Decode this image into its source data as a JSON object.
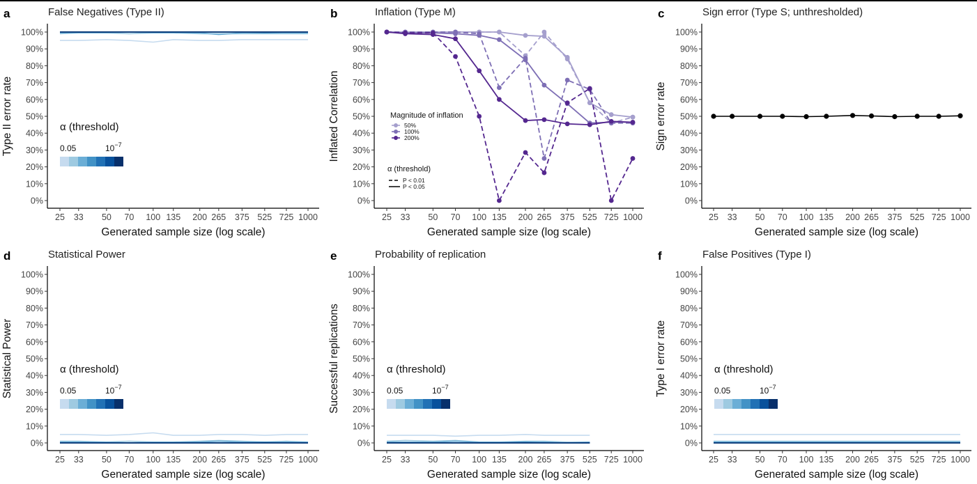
{
  "figure": {
    "x_axis_label": "Generated sample size (log scale)",
    "x_ticks": [
      "25",
      "33",
      "50",
      "70",
      "100",
      "135",
      "200",
      "265",
      "375",
      "525",
      "725",
      "1000"
    ],
    "y_ticks": [
      "0%",
      "10%",
      "20%",
      "30%",
      "40%",
      "50%",
      "60%",
      "70%",
      "80%",
      "90%",
      "100%"
    ],
    "blue_scale": [
      "#c6dbef",
      "#9ecae1",
      "#6baed6",
      "#4292c6",
      "#2171b5",
      "#08519c",
      "#08306b"
    ]
  },
  "chart_data": [
    {
      "panel_letter": "a",
      "type": "line",
      "title": "False Negatives (Type II)",
      "xlabel": "Generated sample size (log scale)",
      "ylabel": "Type II error rate",
      "x": [
        25,
        33,
        50,
        70,
        100,
        135,
        200,
        265,
        375,
        525,
        725,
        1000
      ],
      "ylim": [
        0,
        100
      ],
      "legend": {
        "title": "α (threshold)",
        "low_label": "0.05",
        "high_label": "10",
        "high_exp": "−7",
        "position": "middle-left"
      },
      "series": [
        {
          "color": "#c6dbef",
          "values": [
            95,
            95,
            95.5,
            95,
            94,
            95.5,
            95,
            95,
            95.5,
            95.5,
            95.5,
            95.5
          ]
        },
        {
          "color": "#9ecae1",
          "values": [
            99,
            99.5,
            99.5,
            99,
            99.5,
            99.5,
            99,
            99,
            99,
            99,
            99,
            99
          ]
        },
        {
          "color": "#6baed6",
          "values": [
            99.5,
            99.5,
            99.5,
            100,
            99.5,
            99.5,
            99.5,
            98.5,
            99.5,
            99.5,
            99.5,
            99.5
          ]
        },
        {
          "color": "#4292c6",
          "values": [
            100,
            100,
            100,
            100,
            100,
            100,
            100,
            100,
            100,
            99.5,
            100,
            100
          ]
        },
        {
          "color": "#2171b5",
          "values": [
            100,
            100,
            100,
            100,
            100,
            100,
            100,
            100,
            100,
            100,
            100,
            100
          ]
        },
        {
          "color": "#08519c",
          "values": [
            100,
            100,
            100,
            100,
            100,
            100,
            100,
            100,
            100,
            100,
            100,
            100
          ]
        },
        {
          "color": "#08306b",
          "values": [
            100,
            100,
            100,
            100,
            100,
            100,
            100,
            100,
            100,
            100,
            100,
            100
          ]
        }
      ]
    },
    {
      "panel_letter": "b",
      "type": "line",
      "title": "Inflation (Type M)",
      "xlabel": "Generated sample size (log scale)",
      "ylabel": "Inflated Correlation",
      "x": [
        25,
        33,
        50,
        70,
        100,
        135,
        200,
        265,
        375,
        525,
        725,
        1000
      ],
      "ylim": [
        0,
        100
      ],
      "legend": {
        "magnitude_title": "Magnitude of inflation",
        "magnitude_labels": [
          "50%",
          "100%",
          "200%"
        ],
        "alpha_title": "α (threshold)",
        "alpha_labels": [
          "P < 0.01",
          "P < 0.05"
        ],
        "position": "middle-left"
      },
      "series": [
        {
          "name": "50%",
          "linetype": "solid",
          "color": "#a59fcd",
          "values": [
            100,
            100,
            100,
            100,
            100,
            100,
            98,
            97.5,
            85,
            58,
            51,
            49.5
          ]
        },
        {
          "name": "50%",
          "linetype": "dashed",
          "color": "#a59fcd",
          "values": [
            100,
            100,
            100,
            100,
            100,
            100,
            86,
            100,
            84,
            58,
            46,
            49.5
          ]
        },
        {
          "name": "100%",
          "linetype": "solid",
          "color": "#7e6fb5",
          "values": [
            100,
            99.5,
            99.5,
            99,
            98,
            95.5,
            83.5,
            68.5,
            57.5,
            46,
            46.5,
            46.5
          ]
        },
        {
          "name": "100%",
          "linetype": "dashed",
          "color": "#7e6fb5",
          "values": [
            100,
            100,
            100,
            100,
            99,
            67,
            84.5,
            25,
            71.5,
            66,
            46,
            46
          ]
        },
        {
          "name": "200%",
          "linetype": "solid",
          "color": "#54278f",
          "values": [
            100,
            99,
            98.5,
            96,
            77,
            60,
            47.5,
            48,
            45.5,
            45,
            47,
            46.5
          ]
        },
        {
          "name": "200%",
          "linetype": "dashed",
          "color": "#54278f",
          "values": [
            100,
            99.5,
            99.5,
            85.5,
            50,
            0,
            28.5,
            16.5,
            58,
            66.5,
            0,
            25
          ]
        }
      ]
    },
    {
      "panel_letter": "c",
      "type": "line",
      "title": "Sign error (Type S; unthresholded)",
      "xlabel": "Generated sample size (log scale)",
      "ylabel": "Sign error rate",
      "x": [
        25,
        33,
        50,
        70,
        100,
        135,
        200,
        265,
        375,
        525,
        725,
        1000
      ],
      "ylim": [
        0,
        100
      ],
      "series": [
        {
          "color": "#000000",
          "values": [
            50,
            50,
            50,
            50,
            49.8,
            50,
            50.5,
            50.2,
            49.8,
            50,
            50,
            50.3
          ]
        }
      ]
    },
    {
      "panel_letter": "d",
      "type": "line",
      "title": "Statistical Power",
      "xlabel": "Generated sample size (log scale)",
      "ylabel": "Statistical Power",
      "x": [
        25,
        33,
        50,
        70,
        100,
        135,
        200,
        265,
        375,
        525,
        725,
        1000
      ],
      "ylim": [
        0,
        100
      ],
      "legend": {
        "title": "α (threshold)",
        "low_label": "0.05",
        "high_label": "10",
        "high_exp": "−7",
        "position": "middle-left"
      },
      "series": [
        {
          "color": "#c6dbef",
          "values": [
            5,
            5,
            4.5,
            5,
            6,
            4.5,
            4.5,
            5,
            5,
            4.5,
            5,
            5
          ]
        },
        {
          "color": "#9ecae1",
          "values": [
            1,
            1,
            0.5,
            1,
            0.5,
            0.5,
            1,
            1.5,
            1,
            0.5,
            1,
            0.5
          ]
        },
        {
          "color": "#6baed6",
          "values": [
            0.5,
            0.5,
            0.5,
            0,
            0.5,
            0.5,
            0.5,
            1,
            0.5,
            0.5,
            0.5,
            0.5
          ]
        },
        {
          "color": "#4292c6",
          "values": [
            0,
            0,
            0,
            0,
            0,
            0,
            0,
            0,
            0,
            0.5,
            0,
            0
          ]
        },
        {
          "color": "#2171b5",
          "values": [
            0,
            0,
            0,
            0,
            0,
            0,
            0,
            0,
            0,
            0,
            0,
            0
          ]
        },
        {
          "color": "#08519c",
          "values": [
            0,
            0,
            0,
            0,
            0,
            0,
            0,
            0,
            0,
            0,
            0,
            0
          ]
        },
        {
          "color": "#08306b",
          "values": [
            0,
            0,
            0,
            0,
            0,
            0,
            0,
            0,
            0,
            0,
            0,
            0
          ]
        }
      ]
    },
    {
      "panel_letter": "e",
      "type": "line",
      "title": "Probability of replication",
      "xlabel": "Generated sample size (log scale)",
      "ylabel": "Successful replications",
      "x": [
        25,
        33,
        50,
        70,
        100,
        135,
        200,
        265,
        375,
        525,
        725,
        1000
      ],
      "ylim": [
        0,
        100
      ],
      "legend": {
        "title": "α (threshold)",
        "low_label": "0.05",
        "high_label": "10",
        "high_exp": "−7",
        "position": "middle-left"
      },
      "series": [
        {
          "color": "#c6dbef",
          "x": [
            25,
            33,
            50,
            70,
            100,
            135,
            200,
            265,
            375,
            525
          ],
          "values": [
            4.5,
            4.5,
            4.5,
            4,
            4.5,
            4.5,
            5,
            4.5,
            4.5,
            4.5
          ]
        },
        {
          "color": "#9ecae1",
          "x": [
            25,
            33,
            50,
            70,
            100,
            135,
            200,
            265,
            375,
            525
          ],
          "values": [
            1,
            1.5,
            1,
            1.5,
            0.5,
            0.5,
            1,
            1,
            0.5,
            0.5
          ]
        },
        {
          "color": "#6baed6",
          "x": [
            25,
            33,
            50,
            70,
            100,
            135,
            200,
            265,
            375,
            525
          ],
          "values": [
            0.5,
            0.5,
            0.5,
            1,
            0.5,
            0.5,
            0.5,
            0.5,
            0,
            0.5
          ]
        },
        {
          "color": "#4292c6",
          "x": [
            25,
            33,
            50,
            70,
            100,
            135,
            200,
            265,
            375,
            525
          ],
          "values": [
            0,
            0,
            0,
            0,
            0,
            0,
            0.5,
            0,
            0,
            0
          ]
        },
        {
          "color": "#2171b5",
          "x": [
            25,
            33,
            50,
            70,
            100,
            135,
            200,
            265,
            375,
            525
          ],
          "values": [
            0,
            0,
            0,
            0,
            0,
            0,
            0,
            0,
            0,
            0
          ]
        },
        {
          "color": "#08519c",
          "x": [
            25,
            33,
            50,
            70,
            100,
            135,
            200,
            265,
            375,
            525
          ],
          "values": [
            0,
            0,
            0,
            0,
            0,
            0,
            0,
            0,
            0,
            0
          ]
        },
        {
          "color": "#08306b",
          "x": [
            25,
            33,
            50,
            70,
            100,
            135,
            200,
            265,
            375,
            525
          ],
          "values": [
            0,
            0,
            0,
            0,
            0,
            0,
            0,
            0,
            0,
            0
          ]
        }
      ]
    },
    {
      "panel_letter": "f",
      "type": "line",
      "title": "False Positives (Type I)",
      "xlabel": "Generated sample size (log scale)",
      "ylabel": "Type I error rate",
      "x": [
        25,
        33,
        50,
        70,
        100,
        135,
        200,
        265,
        375,
        525,
        725,
        1000
      ],
      "ylim": [
        0,
        100
      ],
      "legend": {
        "title": "α (threshold)",
        "low_label": "0.05",
        "high_label": "10",
        "high_exp": "−7",
        "position": "middle-left"
      },
      "series": [
        {
          "color": "#c6dbef",
          "values": [
            5,
            5,
            5,
            5,
            5,
            5,
            5,
            5,
            5,
            5,
            5,
            5
          ]
        },
        {
          "color": "#9ecae1",
          "values": [
            1,
            1,
            1,
            1,
            1,
            1,
            1,
            1,
            1,
            1,
            1,
            1
          ]
        },
        {
          "color": "#6baed6",
          "values": [
            0.5,
            0.5,
            0.5,
            0.5,
            0.5,
            0.5,
            0.5,
            0.5,
            0.5,
            0.5,
            0.5,
            0.5
          ]
        },
        {
          "color": "#4292c6",
          "values": [
            0,
            0,
            0,
            0,
            0,
            0,
            0,
            0,
            0,
            0,
            0,
            0
          ]
        },
        {
          "color": "#2171b5",
          "values": [
            0,
            0,
            0,
            0,
            0,
            0,
            0,
            0,
            0,
            0,
            0,
            0
          ]
        },
        {
          "color": "#08519c",
          "values": [
            0,
            0,
            0,
            0,
            0,
            0,
            0,
            0,
            0,
            0,
            0,
            0
          ]
        },
        {
          "color": "#08306b",
          "values": [
            0,
            0,
            0,
            0,
            0,
            0,
            0,
            0,
            0,
            0,
            0,
            0
          ]
        }
      ]
    }
  ]
}
